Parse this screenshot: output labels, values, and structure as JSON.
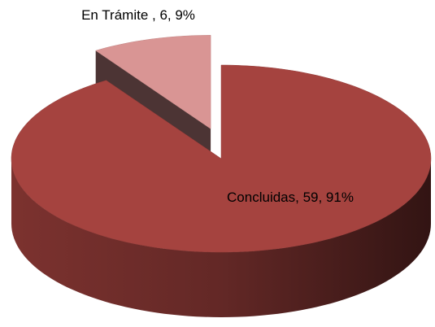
{
  "chart_data": {
    "type": "pie3d",
    "categories": [
      "Concluidas",
      "En Trámite "
    ],
    "values": [
      59,
      6
    ],
    "value_labels": [
      "Concluidas, 59, 91%",
      "En Trámite , 6, 9%"
    ],
    "colors": [
      "#a5433f",
      "#d99594"
    ],
    "exploded": [
      false,
      true
    ]
  }
}
